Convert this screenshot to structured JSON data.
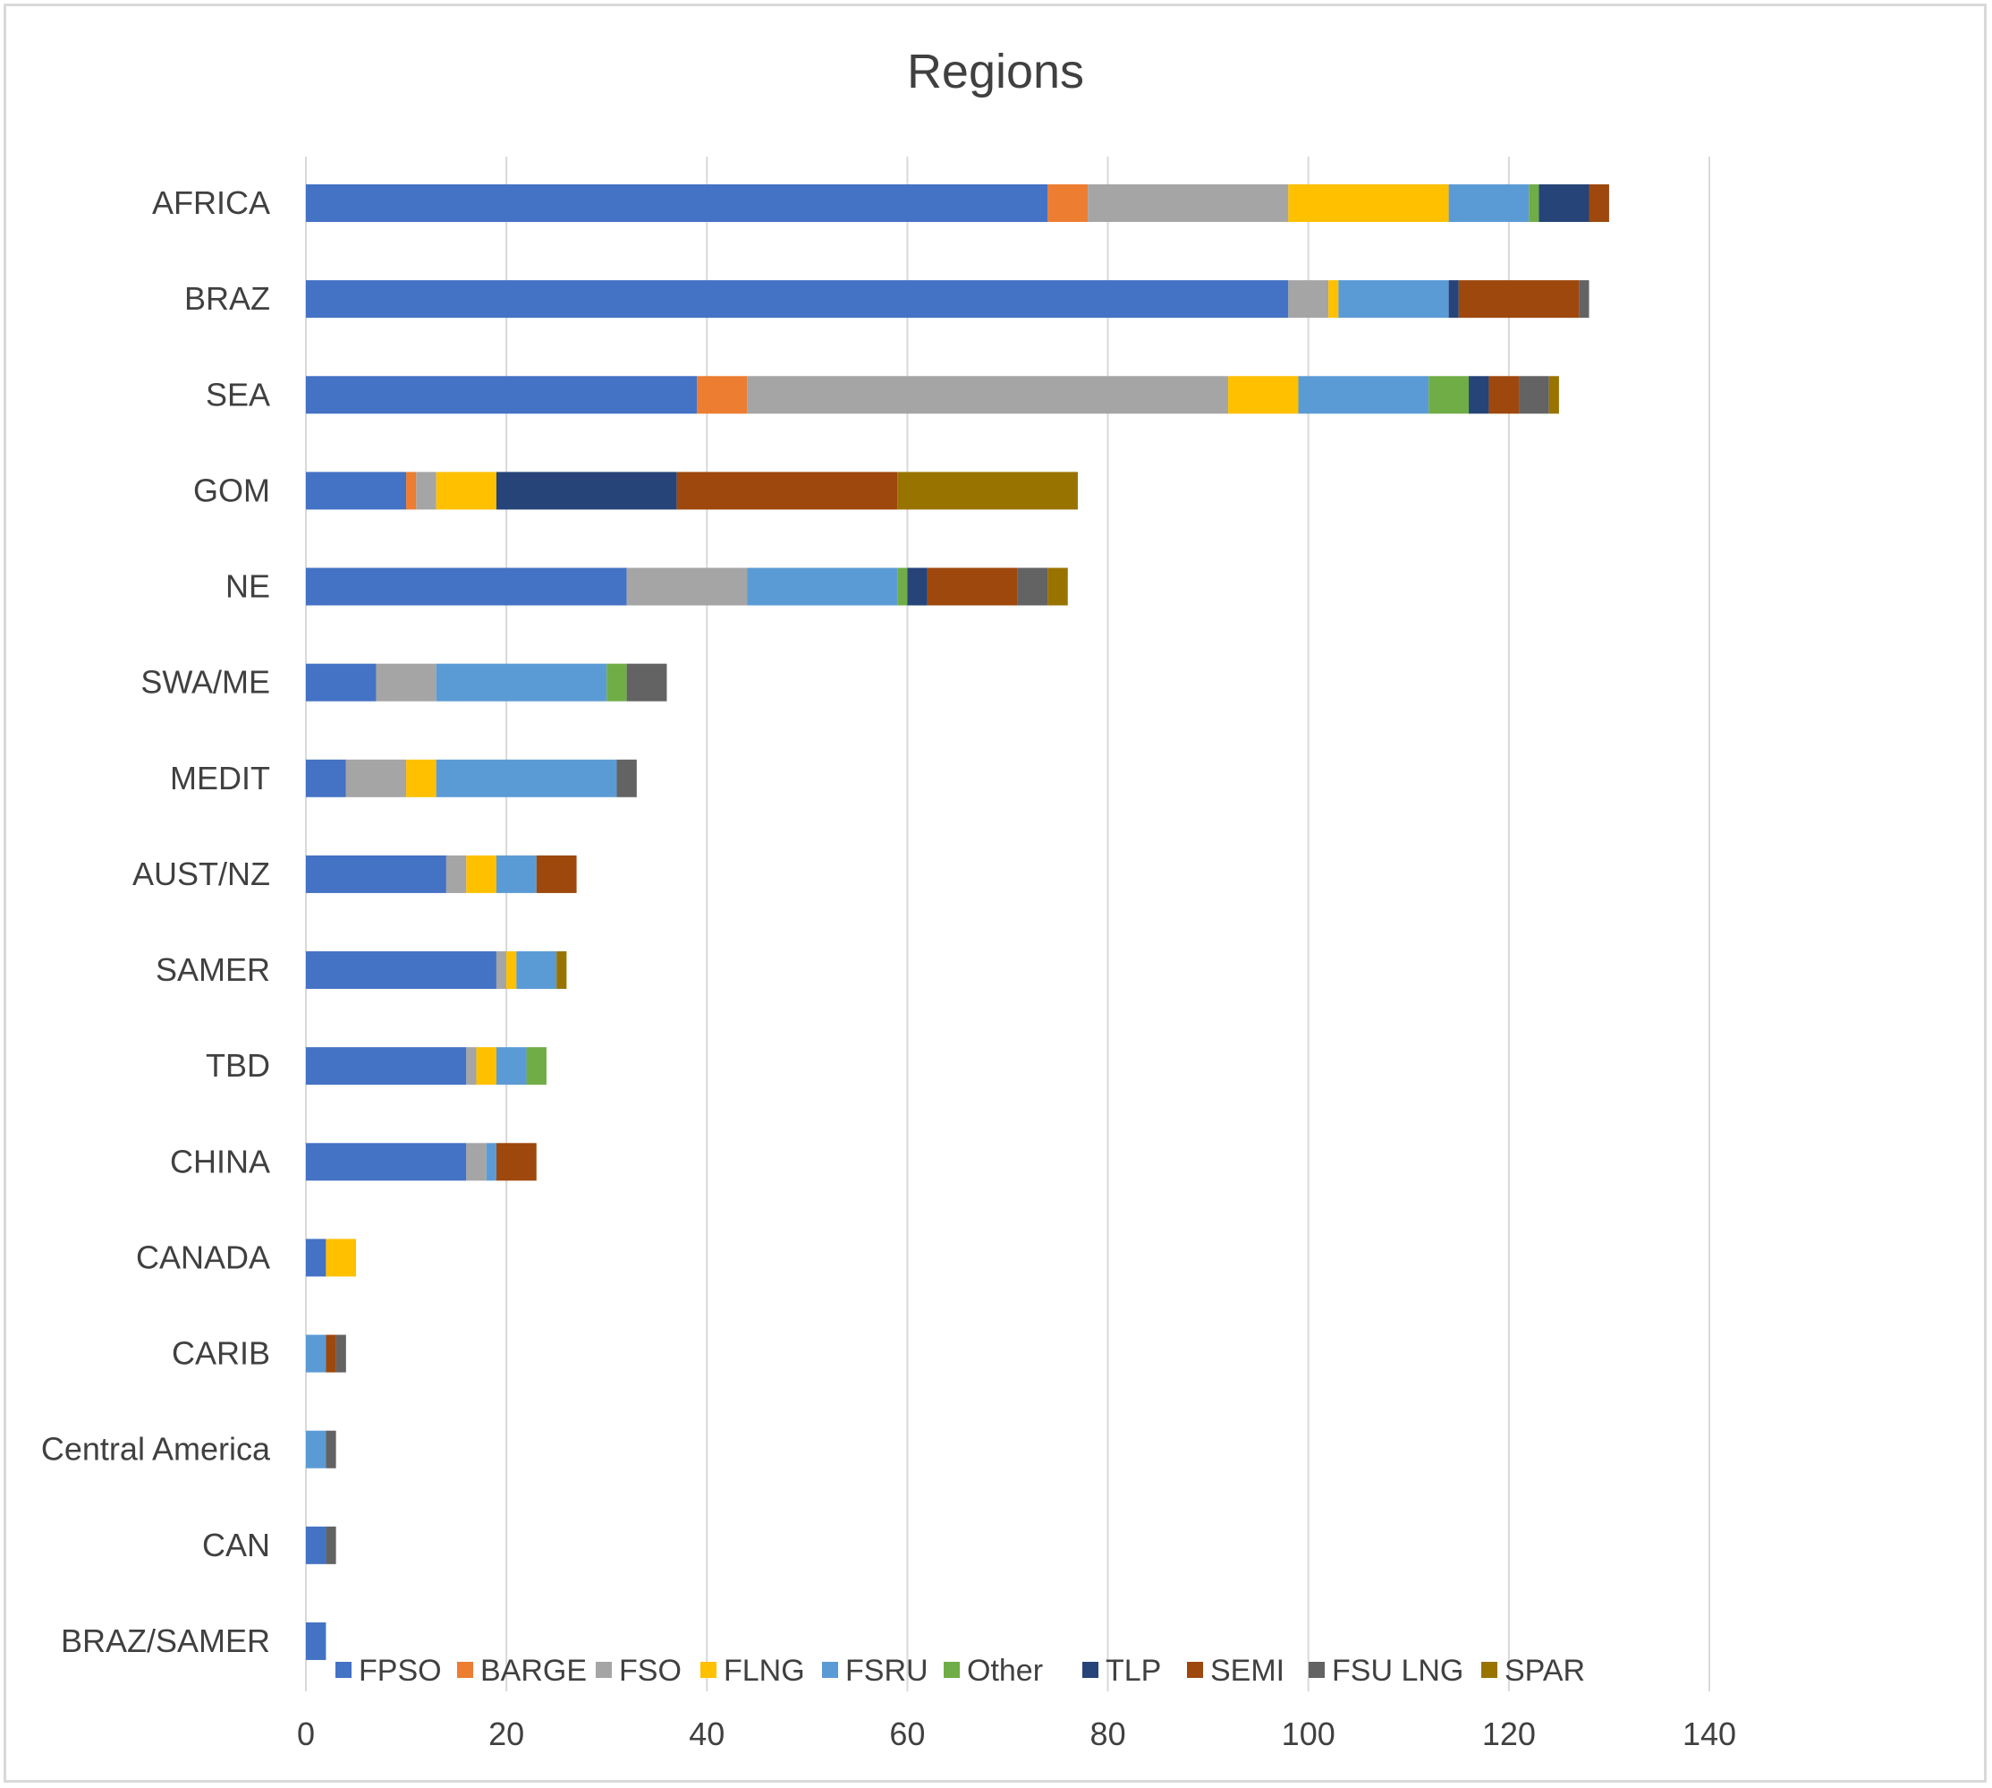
{
  "chart_data": {
    "type": "bar",
    "orientation": "horizontal",
    "stacked": true,
    "title": "Regions",
    "xlabel": "",
    "ylabel": "",
    "xlim": [
      0,
      140
    ],
    "x_ticks": [
      0,
      20,
      40,
      60,
      80,
      100,
      120,
      140
    ],
    "grid": true,
    "legend_position": "bottom",
    "categories": [
      "AFRICA",
      "BRAZ",
      "SEA",
      "GOM",
      "NE",
      "SWA/ME",
      "MEDIT",
      "AUST/NZ",
      "SAMER",
      "TBD",
      "CHINA",
      "CANADA",
      "CARIB",
      "Central America",
      "CAN",
      "BRAZ/SAMER"
    ],
    "series": [
      {
        "name": "FPSO",
        "color": "#4472C4",
        "values": [
          74,
          98,
          39,
          10,
          32,
          7,
          4,
          14,
          19,
          16,
          16,
          2,
          0,
          0,
          2,
          2
        ]
      },
      {
        "name": "BARGE",
        "color": "#ED7D31",
        "values": [
          4,
          0,
          5,
          1,
          0,
          0,
          0,
          0,
          0,
          0,
          0,
          0,
          0,
          0,
          0,
          0
        ]
      },
      {
        "name": "FSO",
        "color": "#A5A5A5",
        "values": [
          20,
          4,
          48,
          2,
          12,
          6,
          6,
          2,
          1,
          1,
          2,
          0,
          0,
          0,
          0,
          0
        ]
      },
      {
        "name": "FLNG",
        "color": "#FFC000",
        "values": [
          16,
          1,
          7,
          6,
          0,
          0,
          3,
          3,
          1,
          2,
          0,
          3,
          0,
          0,
          0,
          0
        ]
      },
      {
        "name": "FSRU",
        "color": "#5B9BD5",
        "values": [
          8,
          11,
          13,
          0,
          15,
          17,
          18,
          4,
          4,
          3,
          1,
          0,
          2,
          2,
          0,
          0
        ]
      },
      {
        "name": "Other",
        "color": "#70AD47",
        "values": [
          1,
          0,
          4,
          0,
          1,
          2,
          0,
          0,
          0,
          2,
          0,
          0,
          0,
          0,
          0,
          0
        ]
      },
      {
        "name": "TLP",
        "color": "#264478",
        "values": [
          5,
          1,
          2,
          18,
          2,
          0,
          0,
          0,
          0,
          0,
          0,
          0,
          0,
          0,
          0,
          0
        ]
      },
      {
        "name": "SEMI",
        "color": "#9E480E",
        "values": [
          2,
          12,
          3,
          22,
          9,
          0,
          0,
          4,
          0,
          0,
          4,
          0,
          1,
          0,
          0,
          0
        ]
      },
      {
        "name": "FSU LNG",
        "color": "#636363",
        "values": [
          0,
          1,
          3,
          0,
          3,
          4,
          2,
          0,
          0,
          0,
          0,
          0,
          1,
          1,
          1,
          0
        ]
      },
      {
        "name": "SPAR",
        "color": "#997300",
        "values": [
          0,
          0,
          1,
          18,
          2,
          0,
          0,
          0,
          1,
          0,
          0,
          0,
          0,
          0,
          0,
          0
        ]
      }
    ]
  }
}
